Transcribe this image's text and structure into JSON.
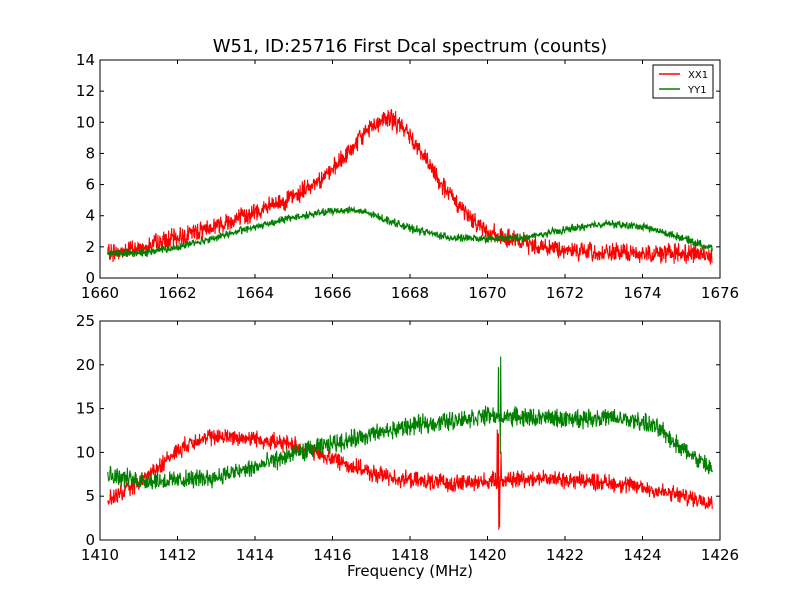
{
  "chart_data": [
    {
      "type": "line",
      "title": "W51, ID:25716 First Dcal spectrum (counts)",
      "xlabel": "",
      "ylabel": "",
      "xlim": [
        1660,
        1676
      ],
      "ylim": [
        0,
        14
      ],
      "xticks": [
        1660,
        1662,
        1664,
        1666,
        1668,
        1670,
        1672,
        1674,
        1676
      ],
      "yticks": [
        0,
        2,
        4,
        6,
        8,
        10,
        12,
        14
      ],
      "grid": false,
      "legend": "top-right",
      "series": [
        {
          "name": "XX1",
          "color": "#ff0000",
          "x": [
            1660.2,
            1661,
            1662,
            1663,
            1664,
            1665,
            1666,
            1666.5,
            1667,
            1667.5,
            1668,
            1668.5,
            1669,
            1669.5,
            1670,
            1670.5,
            1671,
            1672,
            1673,
            1674,
            1675,
            1675.8
          ],
          "y": [
            1.6,
            1.9,
            2.6,
            3.4,
            4.2,
            5.2,
            6.9,
            8.3,
            9.8,
            10.3,
            9.2,
            7.2,
            5.4,
            4.0,
            3.0,
            2.5,
            2.2,
            1.8,
            1.6,
            1.6,
            1.6,
            1.5
          ],
          "noise": 0.75
        },
        {
          "name": "YY1",
          "color": "#008000",
          "x": [
            1660.2,
            1661,
            1662,
            1663,
            1664,
            1665,
            1666,
            1666.5,
            1667,
            1668,
            1669,
            1670,
            1671,
            1672,
            1673,
            1674,
            1675,
            1675.8
          ],
          "y": [
            1.6,
            1.6,
            2.0,
            2.6,
            3.3,
            3.9,
            4.3,
            4.4,
            4.1,
            3.2,
            2.6,
            2.5,
            2.6,
            3.1,
            3.5,
            3.3,
            2.6,
            1.9
          ],
          "noise": 0.3
        }
      ]
    },
    {
      "type": "line",
      "title": "",
      "xlabel": "Frequency (MHz)",
      "ylabel": "",
      "xlim": [
        1410,
        1426
      ],
      "ylim": [
        0,
        25
      ],
      "xticks": [
        1410,
        1412,
        1414,
        1416,
        1418,
        1420,
        1422,
        1424,
        1426
      ],
      "yticks": [
        0,
        5,
        10,
        15,
        20,
        25
      ],
      "grid": false,
      "legend": "none",
      "series": [
        {
          "name": "",
          "color": "#ff0000",
          "x": [
            1410.2,
            1411,
            1412,
            1412.5,
            1413,
            1414,
            1415,
            1416,
            1417,
            1418,
            1419,
            1420,
            1421,
            1422,
            1423,
            1424,
            1425,
            1425.8
          ],
          "y": [
            4.5,
            6.5,
            10.2,
            11.5,
            11.8,
            11.6,
            10.8,
            9.3,
            7.6,
            6.8,
            6.5,
            6.7,
            7.1,
            6.9,
            6.6,
            6.0,
            5.0,
            4.4
          ],
          "noise": 1.2,
          "feature": {
            "x": 1420.3,
            "min": 0.3,
            "max": 13
          }
        },
        {
          "name": "",
          "color": "#008000",
          "x": [
            1410.2,
            1411,
            1412,
            1413,
            1414,
            1415,
            1416,
            1417,
            1418,
            1419,
            1420,
            1421,
            1422,
            1423,
            1424,
            1424.5,
            1425,
            1425.8
          ],
          "y": [
            7.5,
            6.8,
            6.8,
            7.2,
            8.3,
            9.8,
            11.0,
            12.0,
            13.0,
            13.6,
            14.2,
            14.0,
            13.8,
            14.0,
            13.5,
            12.5,
            10.5,
            8.0
          ],
          "noise": 1.3,
          "feature": {
            "x": 1420.3,
            "min": 9,
            "max": 22
          }
        }
      ]
    }
  ]
}
